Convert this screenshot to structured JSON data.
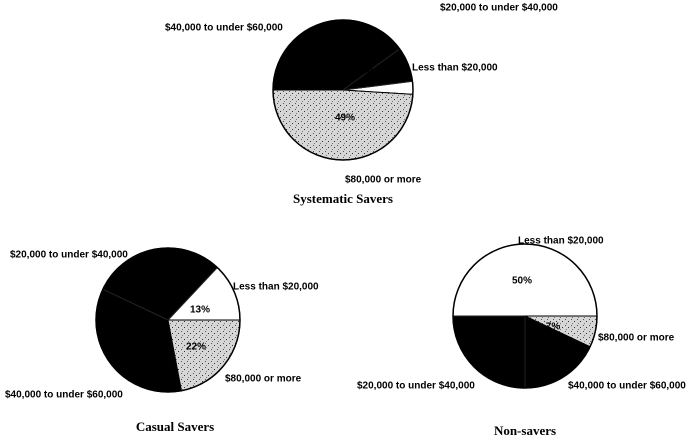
{
  "chart_data": [
    {
      "type": "pie",
      "title": "Systematic Savers",
      "categories": [
        "Less than $20,000",
        "$20,000 to under $40,000",
        "$40,000 to under $60,000",
        "$80,000 or more"
      ],
      "values": [
        3,
        8,
        40,
        49
      ],
      "value_labels": [
        "3%",
        null,
        null,
        "49%"
      ],
      "colors": [
        "#ffffff",
        "#000000",
        "#000000",
        "#c4c4c4"
      ]
    },
    {
      "type": "pie",
      "title": "Casual Savers",
      "categories": [
        "Less than $20,000",
        "$20,000 to under $40,000",
        "$40,000 to under $60,000",
        "$80,000 or more"
      ],
      "values": [
        13,
        30,
        35,
        22
      ],
      "value_labels": [
        "13%",
        null,
        null,
        "22%"
      ],
      "colors": [
        "#ffffff",
        "#000000",
        "#000000",
        "#c4c4c4"
      ]
    },
    {
      "type": "pie",
      "title": "Non-savers",
      "categories": [
        "Less than $20,000",
        "$20,000 to under $40,000",
        "$40,000 to under $60,000",
        "$80,000 or more"
      ],
      "values": [
        50,
        25,
        18,
        7
      ],
      "value_labels": [
        "50%",
        null,
        null,
        "7%"
      ],
      "colors": [
        "#ffffff",
        "#000000",
        "#000000",
        "#c4c4c4"
      ]
    }
  ]
}
